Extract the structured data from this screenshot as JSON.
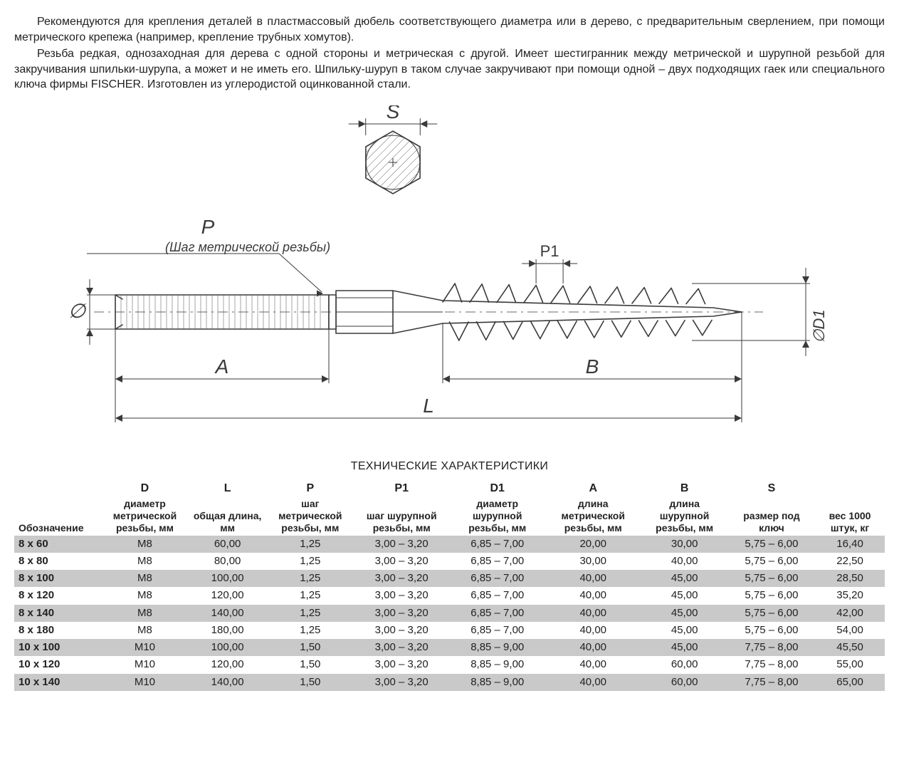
{
  "paragraphs": {
    "p1": "Рекомендуются для крепления деталей в пластмассовый дюбель соответствующего диаметра или в дерево, с предварительным сверлением, при помощи метрического крепежа (например, крепление трубных хомутов).",
    "p2": "Резьба редкая, однозаходная для дерева с одной стороны и метрическая с другой. Имеет шестигранник между метрической и шурупной резьбой для закручивания шпильки-шурупа, а может и не иметь его. Шпильку-шуруп в таком случае закручивают при помощи одной – двух подходящих гаек или специального ключа фирмы FISCHER. Изготовлен из углеродистой оцинкованной стали."
  },
  "diagram": {
    "labels": {
      "S": "S",
      "P": "P",
      "P_note": "(Шаг метрической резьбы)",
      "P1": "P1",
      "phi": "∅",
      "D1": "∅D1",
      "A": "A",
      "B": "B",
      "L": "L"
    },
    "stroke": "#3a3a3a",
    "stroke_width": 1.6,
    "hatch_color": "#6b6b6b",
    "font_family": "Arial, Helvetica, sans-serif",
    "label_fontsize_large": 28,
    "label_fontsize_med": 22,
    "label_fontsize_small": 18
  },
  "table": {
    "title": "ТЕХНИЧЕСКИЕ ХАРАКТЕРИСТИКИ",
    "col_widths_pct": [
      10,
      10,
      9,
      10,
      11,
      11,
      11,
      10,
      10,
      8
    ],
    "headers": [
      {
        "sym": "",
        "sub": "Обозначение"
      },
      {
        "sym": "D",
        "sub": "диаметр метрической резьбы, мм"
      },
      {
        "sym": "L",
        "sub": "общая длина, мм"
      },
      {
        "sym": "P",
        "sub": "шаг метрической резьбы, мм"
      },
      {
        "sym": "P1",
        "sub": "шаг шурупной резьбы, мм"
      },
      {
        "sym": "D1",
        "sub": "диаметр шурупной резьбы, мм"
      },
      {
        "sym": "A",
        "sub": "длина метрической резьбы, мм"
      },
      {
        "sym": "B",
        "sub": "длина шурупной резьбы, мм"
      },
      {
        "sym": "S",
        "sub": "размер под ключ"
      },
      {
        "sym": "",
        "sub": "вес 1000 штук, кг"
      }
    ],
    "rows": [
      {
        "shade": true,
        "c": [
          "8 х 60",
          "M8",
          "60,00",
          "1,25",
          "3,00 – 3,20",
          "6,85 – 7,00",
          "20,00",
          "30,00",
          "5,75 – 6,00",
          "16,40"
        ]
      },
      {
        "shade": false,
        "c": [
          "8 х 80",
          "M8",
          "80,00",
          "1,25",
          "3,00 – 3,20",
          "6,85 – 7,00",
          "30,00",
          "40,00",
          "5,75 – 6,00",
          "22,50"
        ]
      },
      {
        "shade": true,
        "c": [
          "8 х 100",
          "M8",
          "100,00",
          "1,25",
          "3,00 – 3,20",
          "6,85 – 7,00",
          "40,00",
          "45,00",
          "5,75 – 6,00",
          "28,50"
        ]
      },
      {
        "shade": false,
        "c": [
          "8 х 120",
          "M8",
          "120,00",
          "1,25",
          "3,00 – 3,20",
          "6,85 – 7,00",
          "40,00",
          "45,00",
          "5,75 – 6,00",
          "35,20"
        ]
      },
      {
        "shade": true,
        "c": [
          "8 х 140",
          "M8",
          "140,00",
          "1,25",
          "3,00 – 3,20",
          "6,85 – 7,00",
          "40,00",
          "45,00",
          "5,75 – 6,00",
          "42,00"
        ]
      },
      {
        "shade": false,
        "c": [
          "8 х 180",
          "M8",
          "180,00",
          "1,25",
          "3,00 – 3,20",
          "6,85 – 7,00",
          "40,00",
          "45,00",
          "5,75 – 6,00",
          "54,00"
        ]
      },
      {
        "shade": true,
        "c": [
          "10 х 100",
          "M10",
          "100,00",
          "1,50",
          "3,00 – 3,20",
          "8,85 – 9,00",
          "40,00",
          "45,00",
          "7,75 – 8,00",
          "45,50"
        ]
      },
      {
        "shade": false,
        "c": [
          "10 х 120",
          "M10",
          "120,00",
          "1,50",
          "3,00 – 3,20",
          "8,85 – 9,00",
          "40,00",
          "60,00",
          "7,75 – 8,00",
          "55,00"
        ]
      },
      {
        "shade": true,
        "c": [
          "10 х 140",
          "M10",
          "140,00",
          "1,50",
          "3,00 – 3,20",
          "8,85 – 9,00",
          "40,00",
          "60,00",
          "7,75 – 8,00",
          "65,00"
        ]
      }
    ]
  }
}
